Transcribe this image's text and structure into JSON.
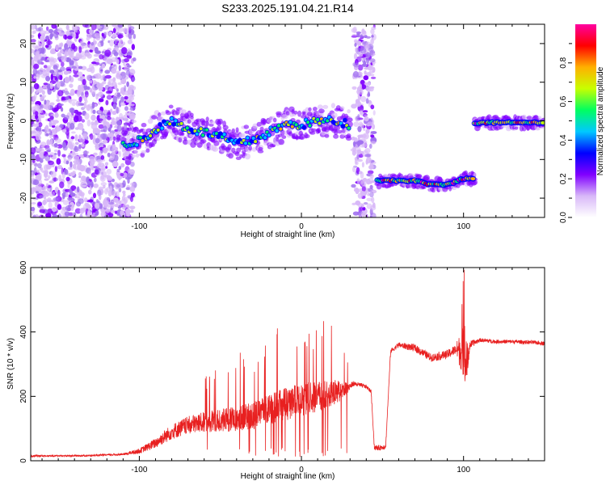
{
  "title": "S233.2025.191.04.21.R14",
  "chart_data": [
    {
      "type": "heatmap",
      "xlabel": "Height of straight line (km)",
      "ylabel": "Frequency (Hz)",
      "xlim": [
        -167,
        150
      ],
      "ylim": [
        -25,
        25
      ],
      "xticks": [
        -100,
        0,
        100
      ],
      "yticks": [
        -20,
        -10,
        0,
        10,
        20
      ],
      "colorbar": {
        "label": "Normalized spectral amplitude",
        "range": [
          0,
          1
        ],
        "ticks": [
          "0.0",
          "0.2",
          "0.4",
          "0.6",
          "0.8"
        ],
        "colormap": [
          "#ffffff",
          "#d8b8f8",
          "#8000ff",
          "#0000ff",
          "#00c8ff",
          "#00ff60",
          "#c8ff00",
          "#ffb000",
          "#ff0000",
          "#ff00a0"
        ]
      },
      "bands": [
        {
          "x": [
            -167,
            -103
          ],
          "y_range": [
            -25,
            25
          ],
          "amplitude": 0.2,
          "kind": "noise"
        },
        {
          "x": [
            -110,
            -97,
            -90,
            -80,
            -70,
            -60,
            -50,
            -40,
            -30,
            -20,
            -10,
            0,
            10,
            20,
            30
          ],
          "y": [
            -6,
            -5,
            -2,
            0,
            -2,
            -3,
            -4,
            -6,
            -5,
            -3,
            -1,
            -1,
            0,
            0,
            -1
          ],
          "amplitude": 0.45,
          "kind": "signal"
        },
        {
          "x": [
            32,
            45
          ],
          "y_range": [
            -25,
            25
          ],
          "amplitude": 0.15,
          "kind": "noise"
        },
        {
          "x": [
            47,
            60,
            70,
            80,
            90,
            100,
            107
          ],
          "y": [
            -15.5,
            -15.5,
            -15.5,
            -16.5,
            -16.5,
            -15,
            -15
          ],
          "amplitude": 0.8,
          "kind": "signal"
        },
        {
          "x": [
            107,
            120,
            130,
            140,
            150
          ],
          "y": [
            -0.5,
            -0.5,
            -0.5,
            -0.5,
            -0.5
          ],
          "amplitude": 0.85,
          "kind": "signal"
        }
      ]
    },
    {
      "type": "line",
      "xlabel": "Height of straight line (km)",
      "ylabel": "SNR (10 * v/v)",
      "xlim": [
        -167,
        150
      ],
      "ylim": [
        0,
        600
      ],
      "xticks": [
        -100,
        0,
        100
      ],
      "yticks": [
        0,
        200,
        400,
        600
      ],
      "color": "#e82020",
      "series": [
        {
          "x": [
            -167,
            -150,
            -130,
            -110,
            -100,
            -90,
            -80,
            -70,
            -60,
            -50,
            -40,
            -30,
            -20,
            -10,
            0,
            10,
            20,
            30,
            32,
            40,
            43,
            45,
            48,
            52,
            55,
            60,
            70,
            80,
            90,
            95,
            100,
            101,
            102,
            103,
            104,
            110,
            120,
            130,
            140,
            150
          ],
          "baseline": [
            15,
            15,
            16,
            20,
            30,
            55,
            90,
            110,
            120,
            125,
            130,
            140,
            160,
            175,
            190,
            200,
            210,
            230,
            240,
            230,
            215,
            40,
            40,
            45,
            340,
            360,
            350,
            320,
            330,
            345,
            340,
            320,
            300,
            330,
            360,
            375,
            370,
            370,
            368,
            365
          ],
          "noise": [
            6,
            6,
            6,
            8,
            20,
            40,
            60,
            70,
            80,
            90,
            100,
            110,
            120,
            130,
            130,
            120,
            110,
            30,
            20,
            15,
            15,
            20,
            20,
            20,
            18,
            20,
            30,
            30,
            35,
            40,
            200,
            200,
            180,
            80,
            30,
            15,
            15,
            15,
            15,
            15
          ]
        }
      ]
    }
  ]
}
